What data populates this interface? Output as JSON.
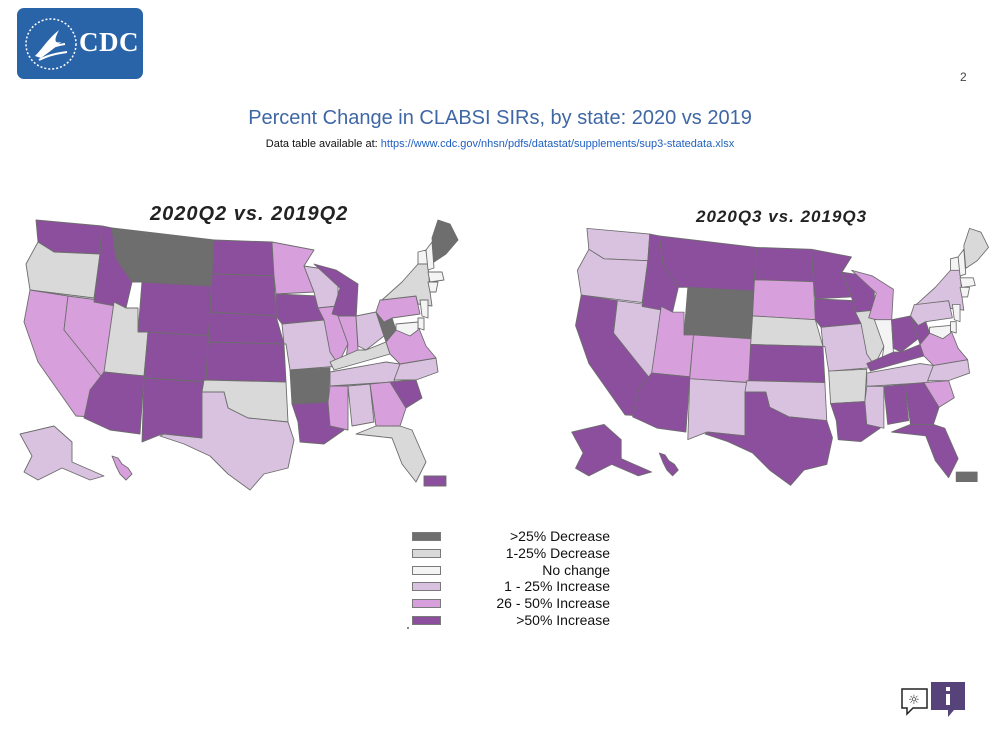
{
  "header": {
    "logo_text": "CDC",
    "corner_mark": "2"
  },
  "title": "Percent Change in CLABSI SIRs, by state: 2020 vs 2019",
  "source": {
    "prefix": "Data table available at:",
    "link": "https://www.cdc.gov/nhsn/pdfs/datastat/supplements/sup3-statedata.xlsx"
  },
  "colors": {
    "dec_gt25": "#6e6e6e",
    "dec_1_25": "#d9d9d9",
    "no_change": "#f4f4f4",
    "inc_1_25": "#d9c2e0",
    "inc_26_50": "#d7a0dc",
    "inc_gt50": "#8c4f9d",
    "logo": "#2a64a8",
    "title": "#3f67a5",
    "link": "#1f5fc0"
  },
  "legend": {
    "items": [
      {
        "label": ">25% Decrease",
        "color": "#6e6e6e"
      },
      {
        "label": "1-25% Decrease",
        "color": "#d9d9d9"
      },
      {
        "label": "No change",
        "color": "#f4f4f4"
      },
      {
        "label": "1 - 25% Increase",
        "color": "#d9c2e0"
      },
      {
        "label": "26 - 50% Increase",
        "color": "#d7a0dc"
      },
      {
        "label": ">50% Increase",
        "color": "#8c4f9d"
      }
    ]
  },
  "maps": [
    {
      "title": "2020Q2 vs. 2019Q2",
      "states": {
        "WA": ">50% Increase",
        "OR": "1-25% Decrease",
        "CA": "26 - 50% Increase",
        "NV": "26 - 50% Increase",
        "ID": ">50% Increase",
        "MT": ">25% Decrease",
        "WY": ">50% Increase",
        "UT": "1-25% Decrease",
        "CO": ">50% Increase",
        "AZ": ">50% Increase",
        "NM": ">50% Increase",
        "ND": ">50% Increase",
        "SD": ">50% Increase",
        "NE": ">50% Increase",
        "KS": ">50% Increase",
        "OK": "1-25% Decrease",
        "TX": "1 - 25% Increase",
        "MN": "26 - 50% Increase",
        "IA": ">50% Increase",
        "MO": "1 - 25% Increase",
        "AR": ">25% Decrease",
        "LA": ">50% Increase",
        "WI": "1 - 25% Increase",
        "IL": "26 - 50% Increase",
        "MI": ">50% Increase",
        "IN": "26 - 50% Increase",
        "OH": "1 - 25% Increase",
        "KY": "1-25% Decrease",
        "TN": "1 - 25% Increase",
        "MS": "26 - 50% Increase",
        "AL": "1 - 25% Increase",
        "GA": "26 - 50% Increase",
        "FL": "1-25% Decrease",
        "SC": ">50% Increase",
        "NC": "1 - 25% Increase",
        "VA": "26 - 50% Increase",
        "WV": ">25% Decrease",
        "PA": "26 - 50% Increase",
        "NY": "1-25% Decrease",
        "ME": ">25% Decrease",
        "AK": "1 - 25% Increase",
        "HI": "26 - 50% Increase",
        "PR": ">50% Increase"
      }
    },
    {
      "title": "2020Q3 vs. 2019Q3",
      "states": {
        "WA": "1 - 25% Increase",
        "OR": "1 - 25% Increase",
        "CA": ">50% Increase",
        "NV": "1 - 25% Increase",
        "ID": ">50% Increase",
        "MT": ">50% Increase",
        "WY": ">25% Decrease",
        "UT": "26 - 50% Increase",
        "CO": "26 - 50% Increase",
        "AZ": ">50% Increase",
        "NM": "1 - 25% Increase",
        "ND": ">50% Increase",
        "SD": "26 - 50% Increase",
        "NE": "1-25% Decrease",
        "KS": ">50% Increase",
        "OK": "1 - 25% Increase",
        "TX": ">50% Increase",
        "MN": ">50% Increase",
        "IA": ">50% Increase",
        "MO": "1 - 25% Increase",
        "AR": "1-25% Decrease",
        "LA": ">50% Increase",
        "WI": ">50% Increase",
        "IL": "1-25% Decrease",
        "MI": "26 - 50% Increase",
        "IN": "No change",
        "OH": ">50% Increase",
        "KY": ">50% Increase",
        "TN": "1 - 25% Increase",
        "MS": "1 - 25% Increase",
        "AL": ">50% Increase",
        "GA": ">50% Increase",
        "FL": ">50% Increase",
        "SC": "26 - 50% Increase",
        "NC": "1 - 25% Increase",
        "VA": "26 - 50% Increase",
        "WV": ">50% Increase",
        "PA": "1 - 25% Increase",
        "NY": "1 - 25% Increase",
        "ME": "1-25% Decrease",
        "AK": ">50% Increase",
        "HI": ">50% Increase",
        "PR": ">25% Decrease"
      }
    }
  ]
}
